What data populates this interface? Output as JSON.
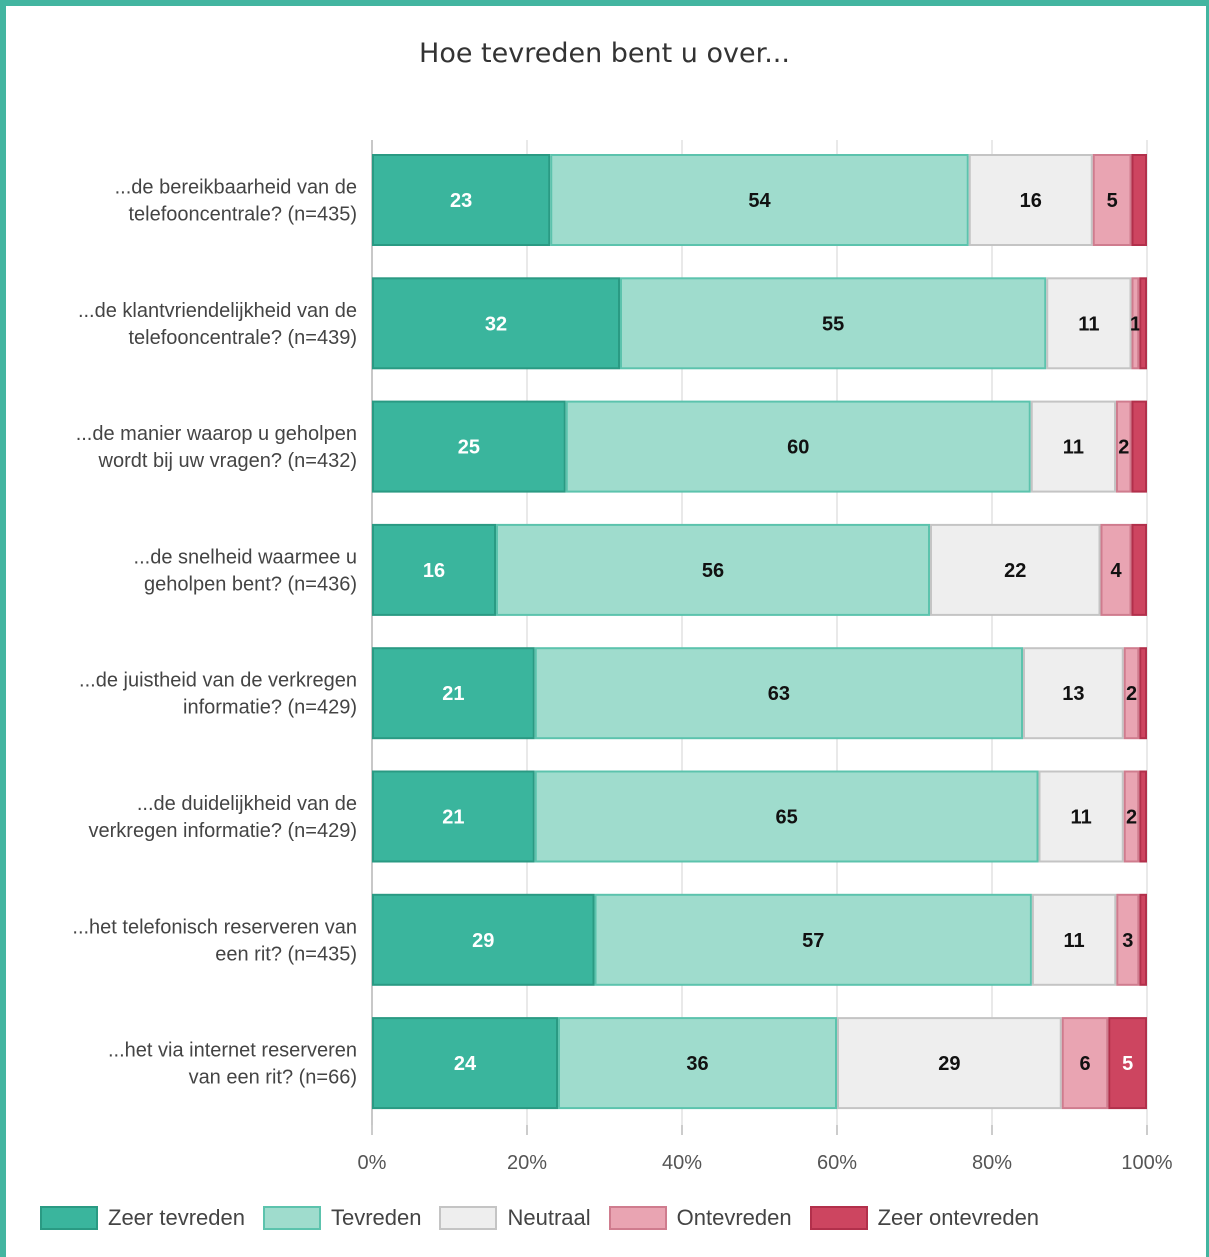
{
  "chart_data": {
    "type": "bar",
    "orientation": "horizontal",
    "stacked": "percent",
    "title": "Hoe tevreden bent u over...",
    "categories": [
      [
        "...de bereikbaarheid van de",
        "telefooncentrale? (n=435)"
      ],
      [
        "...de klantvriendelijkheid van de",
        "telefooncentrale? (n=439)"
      ],
      [
        "...de manier waarop u geholpen",
        "wordt bij uw vragen? (n=432)"
      ],
      [
        "...de snelheid waarmee u",
        "geholpen bent? (n=436)"
      ],
      [
        "...de juistheid van de verkregen",
        "informatie? (n=429)"
      ],
      [
        "...de duidelijkheid van de",
        "verkregen informatie? (n=429)"
      ],
      [
        "...het telefonisch reserveren van",
        "een rit? (n=435)"
      ],
      [
        "...het via internet reserveren",
        "van een rit? (n=66)"
      ]
    ],
    "series": [
      {
        "name": "Zeer tevreden",
        "color": "#3ab59d",
        "border": "#2a9a83",
        "label_color": "#ffffff",
        "values": [
          23,
          32,
          25,
          16,
          21,
          21,
          29,
          24
        ]
      },
      {
        "name": "Tevreden",
        "color": "#9fdccd",
        "border": "#5cc3ad",
        "label_color": "#111111",
        "values": [
          54,
          55,
          60,
          56,
          63,
          65,
          57,
          36
        ]
      },
      {
        "name": "Neutraal",
        "color": "#eeeeee",
        "border": "#c4c4c4",
        "label_color": "#111111",
        "values": [
          16,
          11,
          11,
          22,
          13,
          11,
          11,
          29
        ]
      },
      {
        "name": "Ontevreden",
        "color": "#e9a4b2",
        "border": "#cf7c8e",
        "label_color": "#111111",
        "values": [
          5,
          1,
          2,
          4,
          2,
          2,
          3,
          6
        ]
      },
      {
        "name": "Zeer ontevreden",
        "color": "#cd4560",
        "border": "#b2304b",
        "label_color": "#ffffff",
        "values": [
          2,
          1,
          2,
          2,
          1,
          1,
          1,
          5
        ]
      }
    ],
    "hidden_labels": [
      [
        false,
        false,
        false,
        false,
        true
      ],
      [
        false,
        false,
        false,
        false,
        true
      ],
      [
        false,
        false,
        false,
        false,
        true
      ],
      [
        false,
        false,
        false,
        false,
        true
      ],
      [
        false,
        false,
        false,
        false,
        true
      ],
      [
        false,
        false,
        false,
        false,
        true
      ],
      [
        false,
        false,
        false,
        false,
        true
      ],
      [
        false,
        false,
        false,
        false,
        false
      ]
    ],
    "xlim": [
      0,
      100
    ],
    "xticks": [
      "0%",
      "20%",
      "40%",
      "60%",
      "80%",
      "100%"
    ],
    "grid": true,
    "legend_position": "bottom-left"
  }
}
